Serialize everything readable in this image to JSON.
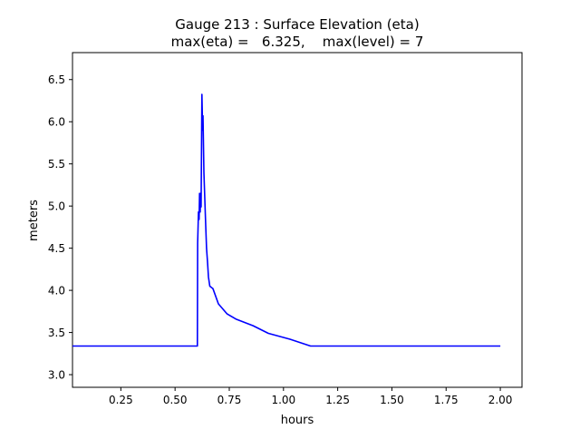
{
  "chart_data": {
    "type": "line",
    "title": "Gauge 213 : Surface Elevation (eta)",
    "subtitle": "max(eta) =   6.325,    max(level) = 7",
    "xlabel": "hours",
    "ylabel": "meters",
    "xlim": [
      0.027,
      2.1
    ],
    "ylim": [
      2.85,
      6.82
    ],
    "xticks": [
      0.25,
      0.5,
      0.75,
      1.0,
      1.25,
      1.5,
      1.75,
      2.0
    ],
    "xtick_labels": [
      "0.25",
      "0.50",
      "0.75",
      "1.00",
      "1.25",
      "1.50",
      "1.75",
      "2.00"
    ],
    "yticks": [
      3.0,
      3.5,
      4.0,
      4.5,
      5.0,
      5.5,
      6.0,
      6.5
    ],
    "ytick_labels": [
      "3.0",
      "3.5",
      "4.0",
      "4.5",
      "5.0",
      "5.5",
      "6.0",
      "6.5"
    ],
    "grid": false,
    "series": [
      {
        "name": "eta",
        "color": "#0000ff",
        "x": [
          0.027,
          0.603,
          0.604,
          0.608,
          0.611,
          0.613,
          0.616,
          0.618,
          0.62,
          0.624,
          0.627,
          0.629,
          0.633,
          0.64,
          0.645,
          0.65,
          0.654,
          0.66,
          0.675,
          0.7,
          0.74,
          0.78,
          0.86,
          0.93,
          1.03,
          1.125,
          2.0
        ],
        "y": [
          3.34,
          3.34,
          4.56,
          4.93,
          4.84,
          5.15,
          4.93,
          5.15,
          4.99,
          6.325,
          5.9,
          6.07,
          5.4,
          4.86,
          4.5,
          4.32,
          4.16,
          4.05,
          4.02,
          3.84,
          3.72,
          3.66,
          3.58,
          3.49,
          3.42,
          3.34,
          3.34
        ]
      }
    ]
  }
}
